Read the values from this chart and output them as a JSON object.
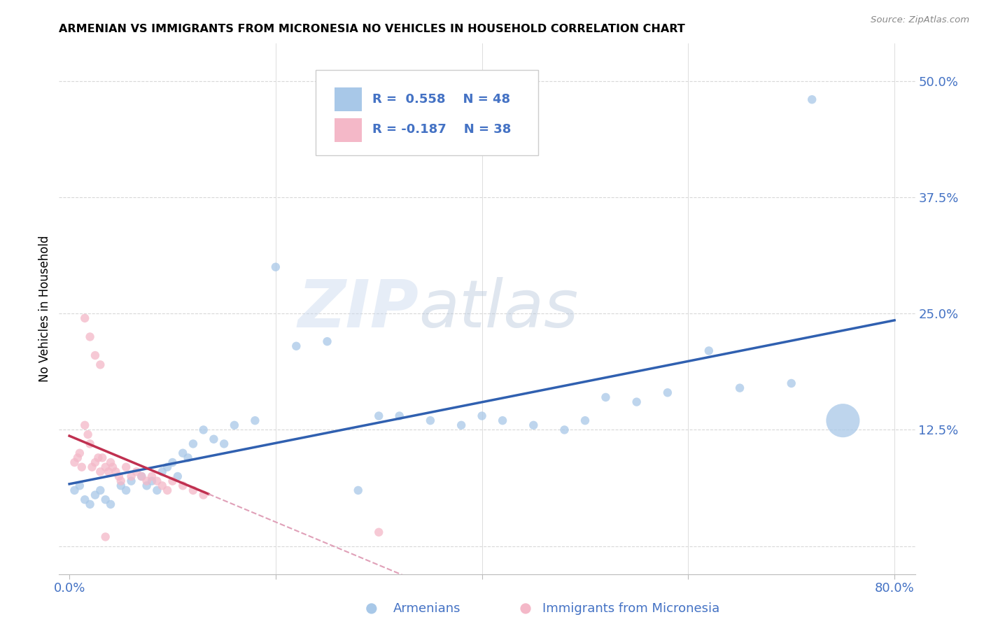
{
  "title": "ARMENIAN VS IMMIGRANTS FROM MICRONESIA NO VEHICLES IN HOUSEHOLD CORRELATION CHART",
  "source": "Source: ZipAtlas.com",
  "ylabel": "No Vehicles in Household",
  "xlabel_armenians": "Armenians",
  "xlabel_micronesia": "Immigrants from Micronesia",
  "watermark_zip": "ZIP",
  "watermark_atlas": "atlas",
  "armenians_R": 0.558,
  "armenians_N": 48,
  "micronesia_R": -0.187,
  "micronesia_N": 38,
  "xlim": [
    -0.01,
    0.82
  ],
  "ylim": [
    -0.03,
    0.54
  ],
  "xticks": [
    0.0,
    0.2,
    0.4,
    0.6,
    0.8
  ],
  "yticks": [
    0.0,
    0.125,
    0.25,
    0.375,
    0.5
  ],
  "color_armenians": "#a8c8e8",
  "color_micronesia": "#f4b8c8",
  "color_armenians_line": "#3060b0",
  "color_micronesia_line": "#c03050",
  "color_micronesia_dashed": "#e0a0b8",
  "background": "#ffffff",
  "grid_color": "#d8d8d8",
  "armenians_x": [
    0.005,
    0.01,
    0.015,
    0.02,
    0.025,
    0.03,
    0.035,
    0.04,
    0.05,
    0.055,
    0.06,
    0.07,
    0.075,
    0.08,
    0.085,
    0.09,
    0.095,
    0.1,
    0.105,
    0.11,
    0.115,
    0.12,
    0.13,
    0.14,
    0.15,
    0.16,
    0.18,
    0.2,
    0.22,
    0.25,
    0.28,
    0.3,
    0.32,
    0.35,
    0.38,
    0.4,
    0.42,
    0.45,
    0.48,
    0.5,
    0.52,
    0.55,
    0.58,
    0.62,
    0.65,
    0.7,
    0.72,
    0.75
  ],
  "armenians_y": [
    0.06,
    0.065,
    0.05,
    0.045,
    0.055,
    0.06,
    0.05,
    0.045,
    0.065,
    0.06,
    0.07,
    0.075,
    0.065,
    0.07,
    0.06,
    0.08,
    0.085,
    0.09,
    0.075,
    0.1,
    0.095,
    0.11,
    0.125,
    0.115,
    0.11,
    0.13,
    0.135,
    0.3,
    0.215,
    0.22,
    0.06,
    0.14,
    0.14,
    0.135,
    0.13,
    0.14,
    0.135,
    0.13,
    0.125,
    0.135,
    0.16,
    0.155,
    0.165,
    0.21,
    0.17,
    0.175,
    0.48,
    0.135
  ],
  "armenians_size": [
    80,
    80,
    80,
    80,
    80,
    80,
    80,
    80,
    80,
    80,
    80,
    80,
    80,
    80,
    80,
    80,
    80,
    80,
    80,
    80,
    80,
    80,
    80,
    80,
    80,
    80,
    80,
    80,
    80,
    80,
    80,
    80,
    80,
    80,
    80,
    80,
    80,
    80,
    80,
    80,
    80,
    80,
    80,
    80,
    80,
    80,
    80,
    1200
  ],
  "micronesia_x": [
    0.005,
    0.008,
    0.01,
    0.012,
    0.015,
    0.018,
    0.02,
    0.022,
    0.025,
    0.028,
    0.03,
    0.032,
    0.035,
    0.038,
    0.04,
    0.042,
    0.045,
    0.048,
    0.05,
    0.055,
    0.06,
    0.065,
    0.07,
    0.075,
    0.08,
    0.085,
    0.09,
    0.095,
    0.1,
    0.11,
    0.12,
    0.13,
    0.015,
    0.02,
    0.025,
    0.03,
    0.035,
    0.3
  ],
  "micronesia_y": [
    0.09,
    0.095,
    0.1,
    0.085,
    0.13,
    0.12,
    0.11,
    0.085,
    0.09,
    0.095,
    0.08,
    0.095,
    0.085,
    0.08,
    0.09,
    0.085,
    0.08,
    0.075,
    0.07,
    0.085,
    0.075,
    0.08,
    0.075,
    0.07,
    0.075,
    0.07,
    0.065,
    0.06,
    0.07,
    0.065,
    0.06,
    0.055,
    0.245,
    0.225,
    0.205,
    0.195,
    0.01,
    0.015
  ],
  "micronesia_size": [
    80,
    80,
    80,
    80,
    80,
    80,
    80,
    80,
    80,
    80,
    80,
    80,
    80,
    80,
    80,
    80,
    80,
    80,
    80,
    80,
    80,
    80,
    80,
    80,
    80,
    80,
    80,
    80,
    80,
    80,
    80,
    80,
    80,
    80,
    80,
    80,
    80,
    80
  ]
}
